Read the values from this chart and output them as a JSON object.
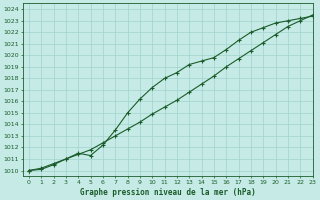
{
  "title": "Graphe pression niveau de la mer (hPa)",
  "bg_color": "#c6ebe6",
  "grid_color": "#a0d4ce",
  "line_color": "#1a5c2a",
  "xlim": [
    -0.5,
    23
  ],
  "ylim": [
    1009.5,
    1024.5
  ],
  "xticks": [
    0,
    1,
    2,
    3,
    4,
    5,
    6,
    7,
    8,
    9,
    10,
    11,
    12,
    13,
    14,
    15,
    16,
    17,
    18,
    19,
    20,
    21,
    22,
    23
  ],
  "yticks": [
    1010,
    1011,
    1012,
    1013,
    1014,
    1015,
    1016,
    1017,
    1018,
    1019,
    1020,
    1021,
    1022,
    1023,
    1024
  ],
  "series1_x": [
    0,
    1,
    2,
    3,
    4,
    5,
    6,
    7,
    8,
    9,
    10,
    11,
    12,
    13,
    14,
    15,
    16,
    17,
    18,
    19,
    20,
    21,
    22,
    23
  ],
  "series1_y": [
    1010.0,
    1010.1,
    1010.5,
    1011.0,
    1011.4,
    1011.8,
    1012.4,
    1013.0,
    1013.6,
    1014.2,
    1014.9,
    1015.5,
    1016.1,
    1016.8,
    1017.5,
    1018.2,
    1019.0,
    1019.7,
    1020.4,
    1021.1,
    1021.8,
    1022.5,
    1023.0,
    1023.5
  ],
  "series2_x": [
    0,
    1,
    2,
    3,
    4,
    5,
    6,
    7,
    8,
    9,
    10,
    11,
    12,
    13,
    14,
    15,
    16,
    17,
    18,
    19,
    20,
    21,
    22,
    23
  ],
  "series2_y": [
    1010.0,
    1010.2,
    1010.6,
    1011.0,
    1011.5,
    1011.3,
    1012.2,
    1013.5,
    1015.0,
    1016.2,
    1017.2,
    1018.0,
    1018.5,
    1019.2,
    1019.5,
    1019.8,
    1020.5,
    1021.3,
    1022.0,
    1022.4,
    1022.8,
    1023.0,
    1023.2,
    1023.4
  ]
}
